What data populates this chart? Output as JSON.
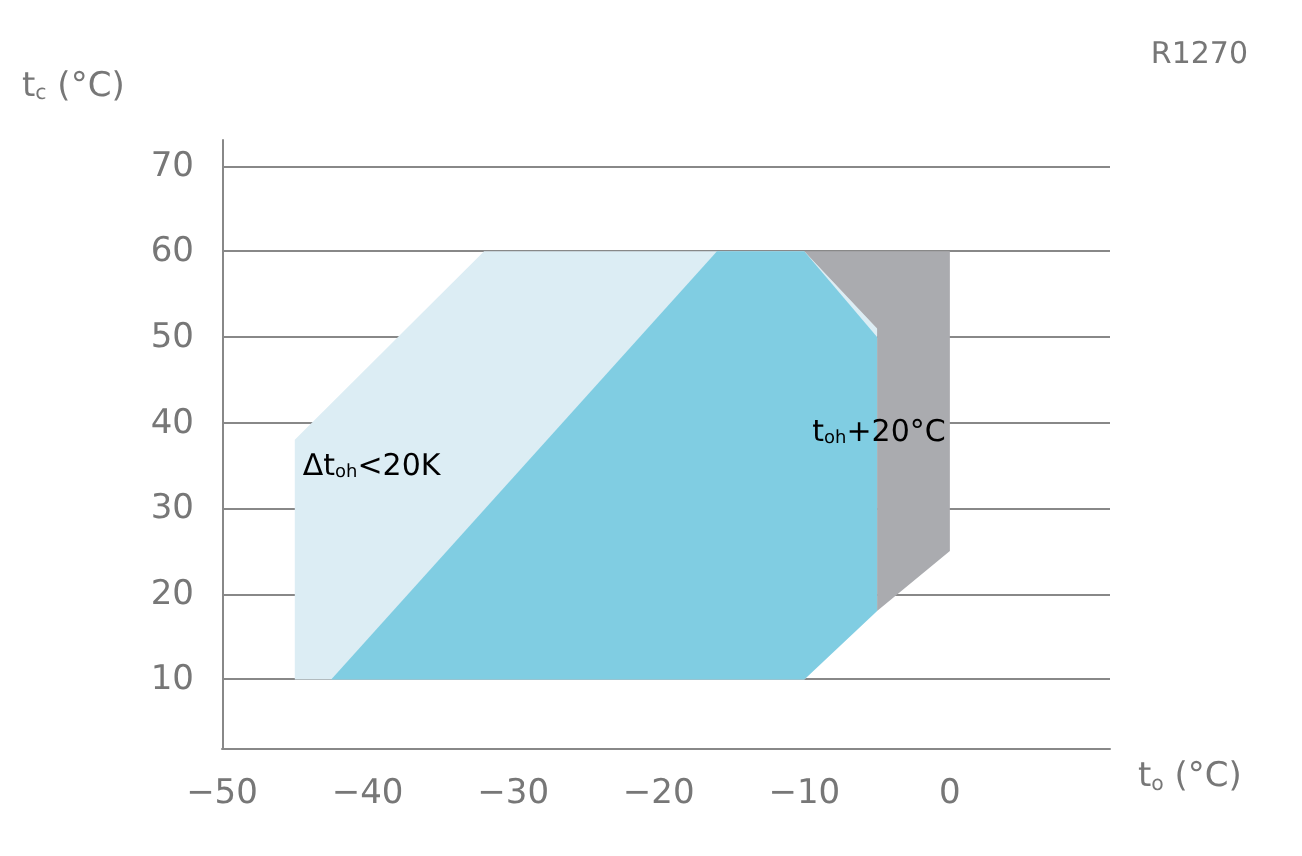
{
  "chart_data": {
    "type": "area",
    "title": "R1270",
    "xlabel": "t$_{o}$ (°C)",
    "ylabel": "t$_{c}$ (°C)",
    "xlim": [
      -50,
      11
    ],
    "ylim": [
      2,
      73
    ],
    "xticks": [
      -50,
      -40,
      -30,
      -20,
      -10,
      0
    ],
    "yticks": [
      10,
      20,
      30,
      40,
      50,
      60,
      70
    ],
    "grid": "y",
    "series": [
      {
        "name": "Δt$_{oh}$<20K",
        "color": "#dcedf4",
        "x": [
          -45,
          -45,
          -32,
          -10,
          -5,
          -5,
          -10
        ],
        "values": [
          10,
          38,
          60,
          60,
          51,
          18,
          10
        ]
      },
      {
        "name": "t$_{oh}$+20°C",
        "color": "#aaabaf",
        "x": [
          -10,
          0,
          0,
          -5,
          -5
        ],
        "values": [
          60,
          60,
          25,
          18,
          51
        ]
      },
      {
        "color": "#80cde2",
        "x": [
          -42.5,
          -16,
          -10,
          -5,
          -5,
          -10
        ],
        "values": [
          10,
          60,
          60,
          50,
          18,
          10
        ]
      }
    ]
  }
}
